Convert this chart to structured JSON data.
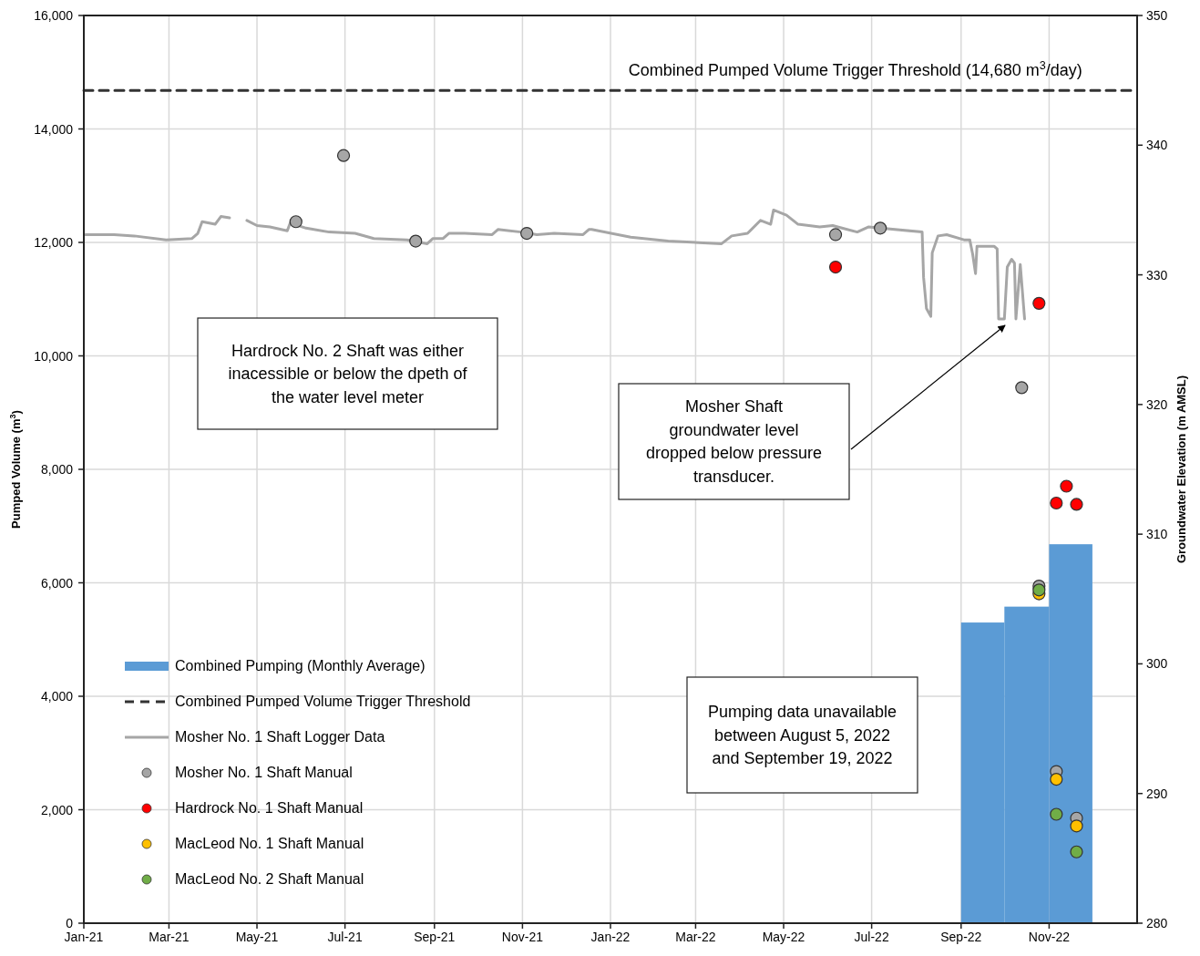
{
  "chart_data": {
    "type": "line",
    "xlabel": null,
    "ylabel": "Pumped Volume (m$^{3}$)",
    "y2label": "Groundwater Elevation (m AMSL)",
    "xlim": [
      "2021-01-01",
      "2023-01-01"
    ],
    "xticks": [
      {
        "value": "2021-01-01",
        "label": "Jan-21"
      },
      {
        "value": "2021-03-01",
        "label": "Mar-21"
      },
      {
        "value": "2021-05-01",
        "label": "May-21"
      },
      {
        "value": "2021-07-01",
        "label": "Jul-21"
      },
      {
        "value": "2021-09-01",
        "label": "Sep-21"
      },
      {
        "value": "2021-11-01",
        "label": "Nov-21"
      },
      {
        "value": "2022-01-01",
        "label": "Jan-22"
      },
      {
        "value": "2022-03-01",
        "label": "Mar-22"
      },
      {
        "value": "2022-05-01",
        "label": "May-22"
      },
      {
        "value": "2022-07-01",
        "label": "Jul-22"
      },
      {
        "value": "2022-09-01",
        "label": "Sep-22"
      },
      {
        "value": "2022-11-01",
        "label": "Nov-22"
      }
    ],
    "ylim": [
      0,
      16000
    ],
    "yticks": [
      {
        "value": 0,
        "label": "0"
      },
      {
        "value": 2000,
        "label": "2,000"
      },
      {
        "value": 4000,
        "label": "4,000"
      },
      {
        "value": 6000,
        "label": "6,000"
      },
      {
        "value": 8000,
        "label": "8,000"
      },
      {
        "value": 10000,
        "label": "10,000"
      },
      {
        "value": 12000,
        "label": "12,000"
      },
      {
        "value": 14000,
        "label": "14,000"
      },
      {
        "value": 16000,
        "label": "16,000"
      }
    ],
    "y2lim": [
      280,
      350
    ],
    "y2ticks": [
      280,
      290,
      300,
      310,
      320,
      330,
      340,
      350
    ],
    "grid": true,
    "legend": "bottom left",
    "series": [
      {
        "type": "bar",
        "name": "Combined Pumping (Monthly Average)",
        "color": "#5b9bd5",
        "x": [
          "2022-09-16",
          "2022-10-16",
          "2022-11-16"
        ],
        "values": [
          5300,
          5580,
          6680
        ]
      },
      {
        "name": "Combined Pumped Volume Trigger Threshold",
        "color": "#333333",
        "line_style": "dashed",
        "marker": "none",
        "x": [
          "2021-01-01",
          "2023-01-01"
        ],
        "values": [
          14680,
          14680
        ]
      },
      {
        "name": "Mosher No. 1 Shaft Logger Data",
        "color": "#a6a6a6",
        "line_style": "solid",
        "marker": "none",
        "axis": "y2",
        "x": [
          "2021-01-02",
          "2021-01-22",
          "2021-02-05",
          "2021-02-27",
          "2021-03-17",
          "2021-03-21",
          "2021-03-24",
          "2021-04-02",
          "2021-04-06",
          "2021-04-12",
          "2021-04-18",
          "2021-04-24",
          "2021-05-01",
          "2021-05-10",
          "2021-05-22",
          "2021-05-24",
          "2021-06-04",
          "2021-06-20",
          "2021-07-08",
          "2021-07-21",
          "2021-08-13",
          "2021-08-27",
          "2021-08-31",
          "2021-09-07",
          "2021-09-11",
          "2021-09-22",
          "2021-10-11",
          "2021-10-15",
          "2021-10-31",
          "2021-11-11",
          "2021-11-23",
          "2021-12-13",
          "2021-12-17",
          "2021-12-19",
          "2022-01-15",
          "2022-02-10",
          "2022-03-19",
          "2022-03-26",
          "2022-04-06",
          "2022-04-15",
          "2022-04-22",
          "2022-04-24",
          "2022-05-03",
          "2022-05-11",
          "2022-05-26",
          "2022-06-04",
          "2022-06-21",
          "2022-06-29",
          "2022-07-07",
          "2022-08-05",
          "2022-08-06",
          "2022-08-08",
          "2022-08-11",
          "2022-08-12",
          "2022-08-16",
          "2022-08-22",
          "2022-09-03",
          "2022-09-07",
          "2022-09-09",
          "2022-09-11",
          "2022-09-12",
          "2022-09-24",
          "2022-09-26",
          "2022-09-27",
          "2022-10-01",
          "2022-10-03",
          "2022-10-06",
          "2022-10-08",
          "2022-10-09",
          "2022-10-12",
          "2022-10-15"
        ],
        "values": [
          333.1,
          333.1,
          333.0,
          332.7,
          332.8,
          333.2,
          334.1,
          333.9,
          334.5,
          334.4,
          null,
          334.2,
          333.8,
          333.7,
          333.4,
          334.0,
          333.6,
          333.3,
          333.2,
          332.8,
          332.7,
          332.4,
          332.8,
          332.8,
          333.2,
          333.2,
          333.1,
          333.5,
          333.3,
          333.1,
          333.2,
          333.1,
          333.5,
          333.5,
          332.9,
          332.6,
          332.4,
          333.0,
          333.2,
          334.2,
          333.9,
          335.0,
          334.6,
          333.9,
          333.7,
          333.8,
          333.3,
          333.7,
          333.6,
          333.3,
          329.8,
          327.4,
          326.8,
          331.7,
          333.0,
          333.1,
          332.7,
          332.7,
          331.6,
          330.1,
          332.2,
          332.2,
          332.0,
          326.6,
          326.6,
          330.6,
          331.2,
          330.9,
          326.6,
          330.8,
          326.6
        ]
      },
      {
        "type": "scatter",
        "name": "Mosher No. 1 Shaft Manual",
        "color": "#a6a6a6",
        "marker": "circle",
        "axis": "y2",
        "x": [
          "2021-05-28",
          "2021-06-30",
          "2021-08-19",
          "2021-11-04",
          "2022-06-06",
          "2022-07-07",
          "2022-10-13",
          "2022-10-25",
          "2022-11-06",
          "2022-11-20"
        ],
        "values": [
          334.1,
          339.2,
          332.6,
          333.2,
          333.1,
          333.6,
          321.3,
          306.0,
          291.7,
          288.1
        ]
      },
      {
        "type": "scatter",
        "name": "Hardrock No. 1 Shaft Manual",
        "color": "#ff0000",
        "marker": "circle",
        "axis": "y2",
        "x": [
          "2022-06-06",
          "2022-10-25",
          "2022-11-06",
          "2022-11-13",
          "2022-11-20"
        ],
        "values": [
          330.6,
          327.8,
          312.4,
          313.7,
          312.3
        ]
      },
      {
        "type": "scatter",
        "name": "MacLeod No. 1 Shaft Manual",
        "color": "#ffc000",
        "marker": "circle",
        "axis": "y2",
        "x": [
          "2022-10-25",
          "2022-11-06",
          "2022-11-20"
        ],
        "values": [
          305.4,
          291.1,
          287.5
        ]
      },
      {
        "type": "scatter",
        "name": "MacLeod No. 2 Shaft Manual",
        "color": "#70ad47",
        "marker": "circle",
        "axis": "y2",
        "x": [
          "2022-10-25",
          "2022-11-06",
          "2022-11-20"
        ],
        "values": [
          305.7,
          288.4,
          285.5
        ]
      }
    ],
    "annotations": [
      {
        "text": "Combined Pumped Volume Trigger Threshold (14,680 m$^{3}$/day)",
        "x": "2022-11-24",
        "y": 14680
      },
      "Hardrock No. 2 Shaft was either inacessible or below the dpeth of the water level meter",
      "Mosher Shaft groundwater level dropped below pressure transducer.",
      "Pumping data unavailable between August 5, 2022 and September 19, 2022"
    ]
  }
}
